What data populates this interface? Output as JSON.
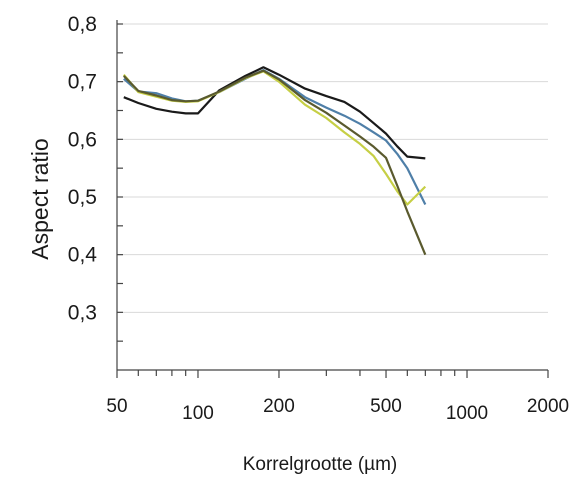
{
  "chart_data": {
    "type": "line",
    "title": "",
    "xlabel": "Korrelgrootte (µm)",
    "ylabel": "Aspect ratio",
    "xscale": "log",
    "xlim": [
      50,
      2000
    ],
    "ylim": [
      0.2,
      0.8
    ],
    "grid": "horizontal",
    "legend": "none",
    "yticks": [
      {
        "value": 0.3,
        "label": "0,3"
      },
      {
        "value": 0.4,
        "label": "0,4"
      },
      {
        "value": 0.5,
        "label": "0,5"
      },
      {
        "value": 0.6,
        "label": "0,6"
      },
      {
        "value": 0.7,
        "label": "0,7"
      },
      {
        "value": 0.8,
        "label": "0,8"
      }
    ],
    "xticks": [
      {
        "value": 50,
        "label": "50"
      },
      {
        "value": 100,
        "label": "100"
      },
      {
        "value": 200,
        "label": "200"
      },
      {
        "value": 500,
        "label": "500"
      },
      {
        "value": 1000,
        "label": "1000"
      },
      {
        "value": 2000,
        "label": "2000"
      }
    ],
    "series": [
      {
        "color": "#1a1a1a",
        "x": [
          53,
          60,
          70,
          80,
          90,
          100,
          120,
          150,
          175,
          200,
          250,
          300,
          350,
          400,
          450,
          500,
          550,
          600,
          700
        ],
        "y": [
          0.673,
          0.663,
          0.653,
          0.648,
          0.645,
          0.645,
          0.685,
          0.71,
          0.725,
          0.712,
          0.688,
          0.675,
          0.665,
          0.648,
          0.628,
          0.61,
          0.588,
          0.57,
          0.567
        ]
      },
      {
        "color": "#4f7fa8",
        "x": [
          53,
          60,
          70,
          80,
          90,
          100,
          120,
          150,
          175,
          200,
          250,
          300,
          350,
          400,
          450,
          500,
          550,
          600,
          700
        ],
        "y": [
          0.705,
          0.683,
          0.68,
          0.671,
          0.666,
          0.667,
          0.682,
          0.705,
          0.72,
          0.705,
          0.673,
          0.655,
          0.641,
          0.627,
          0.612,
          0.598,
          0.575,
          0.55,
          0.487
        ]
      },
      {
        "color": "#c6cf45",
        "x": [
          53,
          60,
          70,
          80,
          90,
          100,
          120,
          150,
          175,
          200,
          250,
          300,
          350,
          400,
          450,
          500,
          550,
          600,
          700
        ],
        "y": [
          0.712,
          0.682,
          0.674,
          0.667,
          0.665,
          0.666,
          0.682,
          0.706,
          0.718,
          0.7,
          0.66,
          0.637,
          0.612,
          0.592,
          0.571,
          0.54,
          0.51,
          0.487,
          0.518
        ]
      },
      {
        "color": "#5a5a2e",
        "x": [
          53,
          60,
          70,
          80,
          90,
          100,
          120,
          150,
          175,
          200,
          250,
          300,
          350,
          400,
          450,
          500,
          550,
          600,
          700
        ],
        "y": [
          0.71,
          0.684,
          0.676,
          0.668,
          0.666,
          0.667,
          0.683,
          0.707,
          0.719,
          0.704,
          0.668,
          0.646,
          0.624,
          0.605,
          0.587,
          0.568,
          0.52,
          0.475,
          0.4
        ]
      }
    ]
  }
}
